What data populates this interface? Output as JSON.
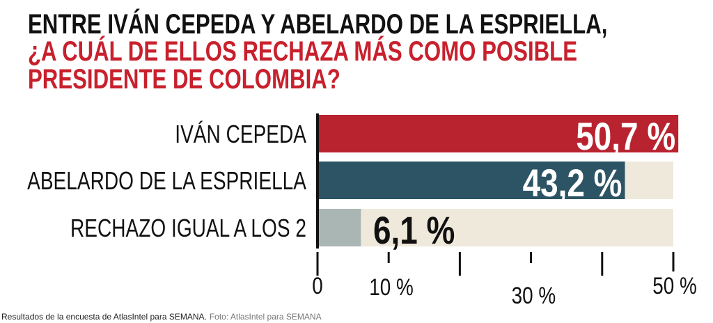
{
  "chart_data": {
    "type": "bar",
    "orientation": "horizontal",
    "title": [
      "ENTRE IVÁN CEPEDA Y ABELARDO DE LA ESPRIELLA,"
    ],
    "subtitle": [
      "¿A CUÁL DE ELLOS RECHAZA MÁS COMO POSIBLE",
      "PRESIDENTE DE COLOMBIA?"
    ],
    "categories": [
      "IVÁN CEPEDA",
      "ABELARDO DE LA ESPRIELLA",
      "RECHAZO IGUAL A LOS 2"
    ],
    "values": [
      50.7,
      43.2,
      6.1
    ],
    "value_labels": [
      "50,7 %",
      "43,2 %",
      "6,1 %"
    ],
    "colors": [
      "#b8232f",
      "#2d5465",
      "#a9b6b4"
    ],
    "track_color": "#efe9dc",
    "xlim": [
      0,
      50
    ],
    "xticks": [
      0,
      {
        "value": 10,
        "label": "10 %"
      },
      {
        "value": 30,
        "label": "30 %"
      },
      {
        "value": 50,
        "label": "50 %"
      }
    ],
    "minor_xticks": [
      20,
      40
    ],
    "caption": "Resultados de la encuesta de AtlasIntel para SEMANA.",
    "credit": "Foto: AtlasIntel para SEMANA"
  }
}
